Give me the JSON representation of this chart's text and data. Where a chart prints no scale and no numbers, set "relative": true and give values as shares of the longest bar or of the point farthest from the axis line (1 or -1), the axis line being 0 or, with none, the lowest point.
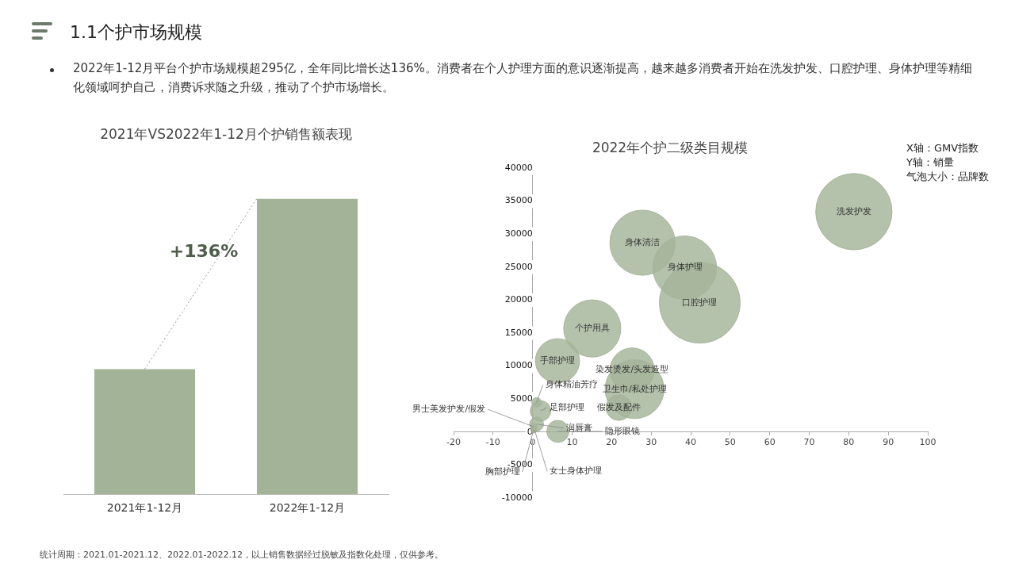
{
  "chart_data": [
    {
      "type": "bar",
      "title": "2021年VS2022年1-12月个护销售额表现",
      "categories": [
        "2021年1-12月",
        "2022年1-12月"
      ],
      "values": [
        0.423,
        1
      ],
      "color": "#a3b398",
      "relative": true,
      "grid": false,
      "legend": false,
      "annotations": [
        "1.1个护市场规模",
        "2022年1-12月平台个护市场规模超295亿，全年同比增长达136%。消费者在个人护理方面的意识逐渐提高，越来越多消费者开始在洗发护发、口腔护理、身体护理等精细化领域呵护自己，消费诉求随之升级，推动了个护市场增长。",
        "+136%",
        "统计周期：2021.01-2021.12、2022.01-2022.12，以上销售数据经过脱敏及指数化处理，仅供参考。"
      ]
    },
    {
      "type": "bubble",
      "title": "2022年个护二级类目规模",
      "xlabel": "X轴：GMV指数",
      "ylabel": "Y轴：销量",
      "color": "#a3b398",
      "grid": false,
      "legend": false,
      "x": [
        81.3,
        27.8,
        38.5,
        42.3,
        15.1,
        6.3,
        25.2,
        25.8,
        21.8,
        1,
        2,
        1,
        6.4,
        0.3,
        0.2,
        0.5
      ],
      "values": [
        33400,
        28700,
        24900,
        19600,
        15700,
        10800,
        9400,
        6500,
        3700,
        4500,
        3200,
        1200,
        100,
        800,
        200,
        300
      ],
      "sizes": [
        0.89,
        0.65,
        0.62,
        1,
        0.5,
        0.3,
        0.3,
        0.53,
        0.1,
        0.014,
        0.065,
        0.03,
        0.075,
        0.006,
        0.0035,
        0.0035
      ],
      "xlim": [
        -20,
        100
      ],
      "xticks": [
        -20,
        -10,
        0,
        10,
        20,
        30,
        40,
        50,
        60,
        70,
        80,
        90,
        100
      ],
      "ylim": [
        -10000,
        40000
      ],
      "yticks": [
        -10000,
        -5000,
        0,
        5000,
        10000,
        15000,
        20000,
        25000,
        30000,
        35000,
        40000
      ],
      "annotations": [
        "气泡大小：品牌数",
        {
          "text": "洗发护发",
          "x": 81.3,
          "y": 33400
        },
        {
          "text": "身体清洁",
          "x": 27.8,
          "y": 28700
        },
        {
          "text": "身体护理",
          "x": 38.5,
          "y": 24900
        },
        {
          "text": "口腔护理",
          "x": 42.3,
          "y": 19600
        },
        {
          "text": "个护用具",
          "x": 15.1,
          "y": 15700
        },
        {
          "text": "手部护理",
          "x": 6.3,
          "y": 10800
        },
        {
          "text": "染发烫发/头发造型",
          "x": 25.2,
          "y": 9400
        },
        {
          "text": "卫生巾/私处护理",
          "x": 25.8,
          "y": 6500
        },
        {
          "text": "假发及配件",
          "x": 21.8,
          "y": 3700
        },
        {
          "text": "身体精油芳疗",
          "x": 1,
          "y": 4500
        },
        {
          "text": "足部护理",
          "x": 2,
          "y": 3200
        },
        {
          "text": "润唇膏",
          "x": 1,
          "y": 1200
        },
        {
          "text": "隐形眼镜",
          "x": 6.4,
          "y": 100
        },
        {
          "text": "男士美发护发/假发",
          "x": 0.3,
          "y": 800
        },
        {
          "text": "胸部护理",
          "x": 0.2,
          "y": 200
        },
        {
          "text": "女士身体护理",
          "x": 0.5,
          "y": 300
        }
      ]
    }
  ]
}
